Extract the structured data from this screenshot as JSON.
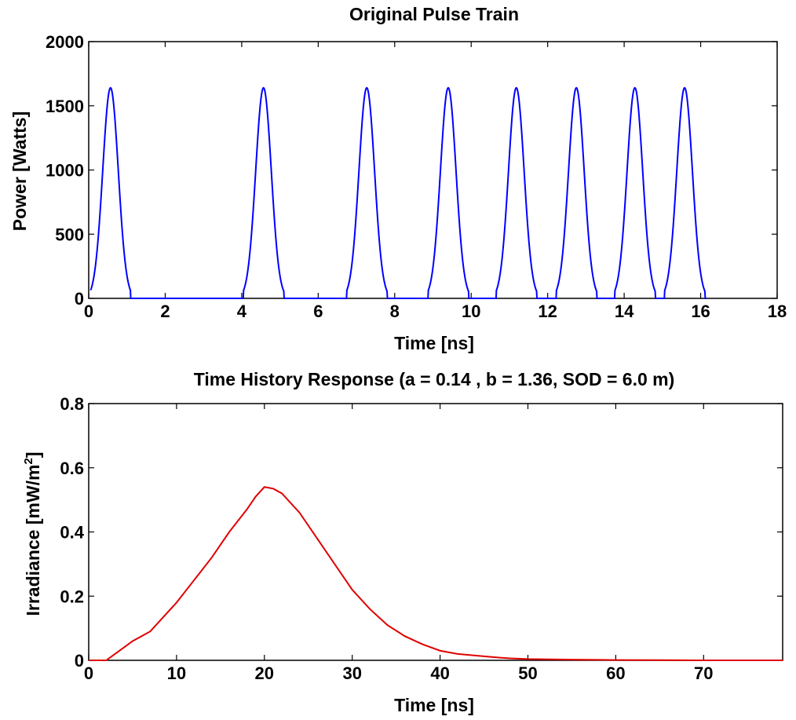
{
  "chart_data": [
    {
      "type": "line",
      "title": "Original Pulse Train",
      "xlabel": "Time [ns]",
      "ylabel": "Power [Watts]",
      "xlim": [
        0,
        18
      ],
      "ylim": [
        0,
        2000
      ],
      "xticks": [
        0,
        2,
        4,
        6,
        8,
        10,
        12,
        14,
        16,
        18
      ],
      "yticks": [
        0,
        500,
        1000,
        1500,
        2000
      ],
      "xtick_labels": [
        "0",
        "2",
        "4",
        "6",
        "8",
        "10",
        "12",
        "14",
        "16",
        "18"
      ],
      "ytick_labels": [
        "0",
        "500",
        "1000",
        "1500",
        "2000"
      ],
      "grid": false,
      "series": [
        {
          "color": "#0000ff",
          "shape": "gaussian-pulse-train",
          "peak": 1640,
          "pulse_centers": [
            0.57,
            4.57,
            7.27,
            9.4,
            11.18,
            12.75,
            14.28,
            15.58
          ],
          "pulse_half_width": 0.53,
          "x_start": 0.05,
          "x_end": 16.15
        }
      ]
    },
    {
      "type": "line",
      "title": "Time History Response (a = 0.14 , b = 1.36, SOD = 6.0 m)",
      "xlabel": "Time [ns]",
      "ylabel": "Irradiance [mW/m",
      "ylabel_superscript": "2",
      "ylabel_suffix": "]",
      "xlim": [
        0,
        79
      ],
      "ylim": [
        0,
        0.8
      ],
      "xticks": [
        0,
        10,
        20,
        30,
        40,
        50,
        60,
        70
      ],
      "yticks": [
        0,
        0.2,
        0.4,
        0.6,
        0.8
      ],
      "xtick_labels": [
        "0",
        "10",
        "20",
        "30",
        "40",
        "50",
        "60",
        "70"
      ],
      "ytick_labels": [
        "0",
        "0.2",
        "0.4",
        "0.6",
        "0.8"
      ],
      "grid": false,
      "series": [
        {
          "color": "#e00000",
          "x": [
            0,
            2,
            3,
            4,
            5,
            6,
            7,
            8,
            10,
            12,
            14,
            16,
            18,
            19,
            20,
            21,
            22,
            24,
            26,
            28,
            30,
            32,
            34,
            36,
            38,
            40,
            42,
            44,
            46,
            48,
            50,
            55,
            60,
            65,
            70,
            79
          ],
          "y": [
            0,
            0,
            0.02,
            0.04,
            0.06,
            0.075,
            0.09,
            0.12,
            0.18,
            0.25,
            0.32,
            0.4,
            0.47,
            0.51,
            0.54,
            0.535,
            0.52,
            0.46,
            0.38,
            0.3,
            0.22,
            0.16,
            0.11,
            0.075,
            0.05,
            0.03,
            0.02,
            0.015,
            0.01,
            0.006,
            0.004,
            0.002,
            0.001,
            0.0005,
            0,
            0
          ]
        }
      ]
    }
  ]
}
